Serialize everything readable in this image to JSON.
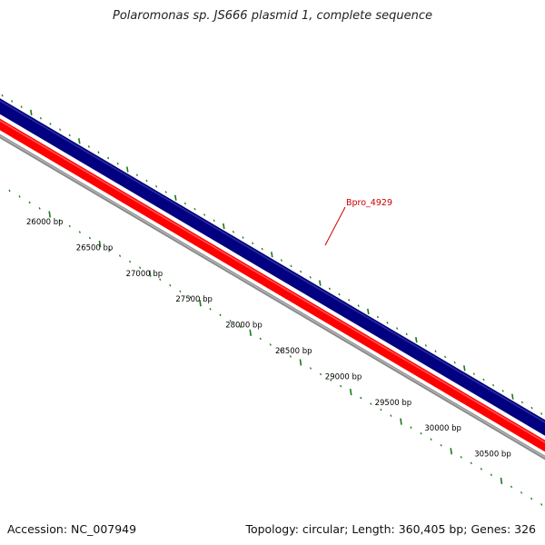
{
  "title": "Polaromonas sp. JS666 plasmid 1, complete sequence",
  "footer": {
    "accession_label": "Accession:",
    "accession": "NC_007949",
    "topology_label": "Topology:",
    "topology": "circular",
    "length_label": "Length:",
    "length": "360,405 bp",
    "genes_label": "Genes:",
    "genes": "326"
  },
  "gene_label": {
    "text": "Bpro_4929",
    "color": "#cc0000"
  },
  "ticks": [
    {
      "label": "26000 bp"
    },
    {
      "label": "26500 bp"
    },
    {
      "label": "27000 bp"
    },
    {
      "label": "27500 bp"
    },
    {
      "label": "28000 bp"
    },
    {
      "label": "28500 bp"
    },
    {
      "label": "29000 bp"
    },
    {
      "label": "29500 bp"
    },
    {
      "label": "30000 bp"
    },
    {
      "label": "30500 bp"
    }
  ],
  "colors": {
    "forward_strand": "#000080",
    "reverse_strand": "#ff0000",
    "backbone": "#888888",
    "tick_marks": "#1a7a1a",
    "background": "#ffffff"
  }
}
